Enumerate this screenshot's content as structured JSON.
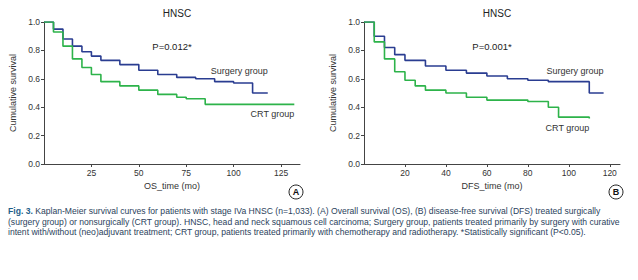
{
  "caption": {
    "label": "Fig. 3.",
    "text": "Kaplan-Meier survival curves for patients with stage IVa HNSC (n=1,033). (A) Overall survival (OS), (B) disease-free survival (DFS) treated surgically (surgery group) or nonsurgically (CRT group). HNSC, head and neck squamous cell carcinoma; Surgery group, patients treated primarily by surgery with curative intent with/without (neo)adjuvant treatment; CRT group, patients treated primarily with chemotherapy and radiotherapy. *Statistically significant (P<0.05)."
  },
  "chart_data": [
    {
      "type": "line",
      "title": "HNSC",
      "panel_label": "A",
      "annotation": "P=0.012*",
      "xlabel": "OS_time (mo)",
      "ylabel": "Cumulative survival",
      "xlim": [
        0,
        135
      ],
      "xticks": [
        25,
        50,
        75,
        100,
        125
      ],
      "ylim": [
        0,
        1
      ],
      "yticks": [
        {
          "value": 0,
          "label": "0.0"
        },
        0.2,
        0.4,
        0.6,
        0.8,
        {
          "value": 1,
          "label": "1.0"
        }
      ],
      "grid": false,
      "line_style": "step",
      "series": [
        {
          "name": "Surgery group",
          "color": "#2a3d91",
          "x": [
            0,
            5,
            10,
            15,
            20,
            25,
            30,
            40,
            50,
            60,
            70,
            80,
            90,
            100,
            110,
            118
          ],
          "values": [
            1,
            0.95,
            0.88,
            0.83,
            0.79,
            0.76,
            0.73,
            0.7,
            0.66,
            0.63,
            0.61,
            0.6,
            0.58,
            0.57,
            0.5,
            0.5
          ]
        },
        {
          "name": "CRT group",
          "color": "#2db34a",
          "x": [
            0,
            5,
            10,
            15,
            20,
            25,
            30,
            40,
            50,
            60,
            70,
            75,
            85,
            100,
            110,
            132
          ],
          "values": [
            1,
            0.93,
            0.83,
            0.74,
            0.68,
            0.63,
            0.58,
            0.55,
            0.52,
            0.49,
            0.47,
            0.46,
            0.42,
            0.42,
            0.42,
            0.42
          ]
        }
      ]
    },
    {
      "type": "line",
      "title": "HNSC",
      "panel_label": "B",
      "annotation": "P=0.001*",
      "xlabel": "DFS_time (mo)",
      "ylabel": "Cumulative survival",
      "xlim": [
        0,
        125
      ],
      "xticks": [
        20,
        40,
        60,
        80,
        100,
        120
      ],
      "ylim": [
        0,
        1
      ],
      "yticks": [
        {
          "value": 0,
          "label": "0.0"
        },
        0.2,
        0.4,
        0.6,
        0.8,
        {
          "value": 1,
          "label": "1.0"
        }
      ],
      "grid": false,
      "line_style": "step",
      "series": [
        {
          "name": "Surgery group",
          "color": "#2a3d91",
          "x": [
            0,
            5,
            10,
            15,
            20,
            30,
            40,
            50,
            60,
            70,
            80,
            90,
            105,
            110,
            117
          ],
          "values": [
            1,
            0.9,
            0.82,
            0.77,
            0.73,
            0.69,
            0.66,
            0.64,
            0.62,
            0.6,
            0.59,
            0.58,
            0.58,
            0.5,
            0.5
          ]
        },
        {
          "name": "CRT group",
          "color": "#2db34a",
          "x": [
            0,
            5,
            10,
            15,
            20,
            25,
            30,
            40,
            50,
            60,
            70,
            80,
            90,
            95,
            105,
            110
          ],
          "values": [
            1,
            0.86,
            0.74,
            0.65,
            0.59,
            0.55,
            0.52,
            0.5,
            0.47,
            0.45,
            0.45,
            0.44,
            0.4,
            0.33,
            0.33,
            0.32
          ]
        }
      ]
    }
  ]
}
